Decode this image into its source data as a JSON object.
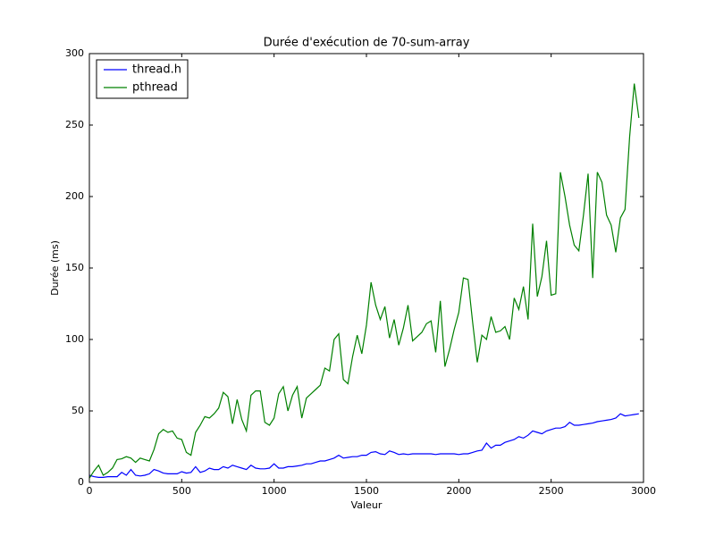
{
  "chart_data": {
    "type": "line",
    "title": "Durée d'exécution de 70-sum-array",
    "xlabel": "Valeur",
    "ylabel": "Durée (ms)",
    "xlim": [
      0,
      3000
    ],
    "ylim": [
      0,
      300
    ],
    "xticks": [
      0,
      500,
      1000,
      1500,
      2000,
      2500,
      3000
    ],
    "yticks": [
      0,
      50,
      100,
      150,
      200,
      250,
      300
    ],
    "legend": "upper left",
    "grid": false,
    "x": [
      0,
      25,
      50,
      75,
      100,
      125,
      150,
      175,
      200,
      225,
      250,
      275,
      300,
      325,
      350,
      375,
      400,
      425,
      450,
      475,
      500,
      525,
      550,
      575,
      600,
      625,
      650,
      675,
      700,
      725,
      750,
      775,
      800,
      825,
      850,
      875,
      900,
      925,
      950,
      975,
      1000,
      1025,
      1050,
      1075,
      1100,
      1125,
      1150,
      1175,
      1200,
      1225,
      1250,
      1275,
      1300,
      1325,
      1350,
      1375,
      1400,
      1425,
      1450,
      1475,
      1500,
      1525,
      1550,
      1575,
      1600,
      1625,
      1650,
      1675,
      1700,
      1725,
      1750,
      1775,
      1800,
      1825,
      1850,
      1875,
      1900,
      1925,
      1950,
      1975,
      2000,
      2025,
      2050,
      2075,
      2100,
      2125,
      2150,
      2175,
      2200,
      2225,
      2250,
      2275,
      2300,
      2325,
      2350,
      2375,
      2400,
      2425,
      2450,
      2475,
      2500,
      2525,
      2550,
      2575,
      2600,
      2625,
      2650,
      2675,
      2700,
      2725,
      2750,
      2775,
      2800,
      2825,
      2850,
      2875,
      2900,
      2925,
      2950,
      2975
    ],
    "series": [
      {
        "name": "thread.h",
        "color": "#0000ff",
        "values": [
          5,
          4,
          3.5,
          3.5,
          4,
          4,
          4,
          7,
          5,
          9,
          5,
          4.5,
          5,
          6,
          9,
          8,
          6.5,
          6,
          6,
          6,
          7.5,
          6.5,
          7,
          11,
          7,
          8,
          10,
          9,
          9,
          11,
          10,
          12,
          11,
          10,
          9,
          12,
          10,
          9.5,
          9.5,
          10,
          13,
          10,
          10,
          11,
          11,
          11.5,
          12,
          13,
          13,
          14,
          15,
          15,
          16,
          17,
          19,
          17,
          17.5,
          18,
          18,
          19,
          19,
          21,
          21.5,
          20,
          19.5,
          22,
          21,
          19.5,
          20,
          19.5,
          20,
          20,
          20,
          20,
          20,
          19.5,
          20,
          20,
          20,
          20,
          19.5,
          20,
          20,
          21,
          22,
          22.5,
          27.5,
          24,
          26,
          26,
          28,
          29,
          30,
          32,
          31,
          33,
          36,
          35,
          34,
          36,
          37,
          38,
          38,
          39,
          42,
          40,
          40,
          40.5,
          41,
          41.5,
          42.5,
          43,
          43.5,
          44,
          45,
          48,
          46.5,
          47,
          47.5,
          48
        ]
      },
      {
        "name": "pthread",
        "color": "#008000",
        "values": [
          3,
          8,
          12,
          5,
          7,
          10,
          16,
          16.5,
          18,
          17,
          14,
          17,
          16,
          15,
          23,
          34,
          37,
          35,
          36,
          31,
          30,
          21,
          19,
          35,
          40,
          46,
          45,
          48,
          52,
          63,
          60,
          41,
          58,
          44,
          36,
          61,
          64,
          64,
          42,
          40,
          45,
          62,
          67,
          50,
          61,
          67,
          45,
          59,
          62,
          65,
          68,
          80,
          78,
          100,
          104,
          72,
          69,
          88,
          103,
          90,
          110,
          140,
          124,
          114,
          123,
          101,
          114,
          96,
          108,
          124,
          99,
          102,
          105,
          111,
          113,
          91,
          127,
          81,
          93,
          107,
          119,
          143,
          142,
          112,
          84,
          103,
          100,
          116,
          105,
          106,
          109,
          100,
          129,
          121,
          137,
          114,
          181,
          130,
          144,
          169,
          131,
          132,
          217,
          200,
          180,
          166,
          162,
          187,
          216,
          143,
          217,
          210,
          187,
          180,
          161,
          185,
          191,
          242,
          279,
          255
        ]
      }
    ]
  }
}
